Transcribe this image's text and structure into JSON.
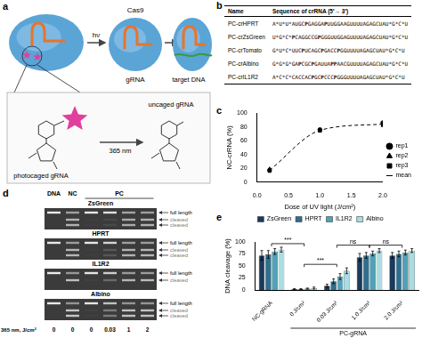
{
  "panel_labels": [
    "a",
    "b",
    "c",
    "d",
    "e"
  ],
  "diagram": {
    "texts": {
      "light": "hν",
      "protein": "Cas9",
      "guide": "gRNA",
      "target": "target DNA",
      "caged": "photocaged gRNA",
      "uncaged": "uncaged gRNA",
      "wavelength": "365 nm"
    }
  },
  "table": {
    "header": [
      "Name",
      "Sequence of crRNA (5′→ 3′)"
    ],
    "rows": [
      [
        "PC-crHPRT",
        "A*U*U*AUGCPGAGGAPUUGGAAGUUUUAGAGCUAU*G*C*U"
      ],
      [
        "PC-crZsGreen",
        "U*G*C*PCAGGCCGPGGGUUGGAGUUUUAGAGCUAU*G*C*U"
      ],
      [
        "PC-crTomato",
        "G*U*C*UUCPUCAGCPGACCPGGUUUUAGAGCUAU*G*C*U"
      ],
      [
        "PC-crAlbino",
        "G*G*G*GAPCGCPGAUUAPPAACGUUUUAGAGCUAU*G*C*U"
      ],
      [
        "PC-crIL1R2",
        "A*C*C*CACCACPGCPCCCPGGGUUUUAGAGCUAU*G*C*U"
      ]
    ]
  },
  "gels": {
    "lane_headers": [
      "DNA",
      "NC",
      "PC",
      "PC",
      "PC",
      "PC"
    ],
    "dose_label": "365 nm, J/cm²",
    "doses": [
      0,
      0,
      0,
      0.03,
      1,
      2
    ],
    "items": [
      {
        "name": "ZsGreen",
        "bands": [
          "full length",
          "cleaved",
          "cleaved"
        ]
      },
      {
        "name": "HPRT",
        "bands": [
          "full length",
          "cleaved",
          "cleaved"
        ]
      },
      {
        "name": "IL1R2",
        "bands": [
          "full length",
          "cleaved"
        ]
      },
      {
        "name": "Albino",
        "bands": [
          "full length",
          "cleaved",
          "cleaved"
        ]
      }
    ]
  },
  "chart_data": [
    {
      "type": "scatter",
      "x_label": "Dose of UV light (J/cm²)",
      "y_label": "NC-crRNA (%)",
      "xlim": [
        0,
        2
      ],
      "xticks": [
        {
          "value": 0,
          "label": "0.0"
        },
        0.5,
        {
          "value": 1,
          "label": "1.0"
        },
        1.5,
        {
          "value": 2,
          "label": "2.0"
        }
      ],
      "ylim": [
        0,
        100
      ],
      "yticks": [
        0,
        20,
        40,
        60,
        80,
        100
      ],
      "grid": false,
      "legend": "right",
      "series": [
        {
          "name": "rep1",
          "type": "scatter",
          "marker": "circle",
          "color": "#000000",
          "x": [
            0.2,
            1.0,
            2.0
          ],
          "values": [
            17,
            76,
            86
          ]
        },
        {
          "name": "rep2",
          "type": "scatter",
          "marker": "triangle",
          "color": "#000000",
          "x": [
            0.2,
            1.0,
            2.0
          ],
          "values": [
            19,
            74,
            82
          ]
        },
        {
          "name": "rep3",
          "type": "scatter",
          "marker": "square",
          "color": "#000000",
          "x": [
            0.2,
            1.0,
            2.0
          ],
          "values": [
            16,
            75,
            84
          ]
        },
        {
          "name": "mean",
          "type": "line",
          "line_style": "dashed",
          "color": "#000000",
          "x": [
            0.2,
            1.0,
            2.0
          ],
          "values": [
            17,
            75,
            84
          ]
        }
      ]
    },
    {
      "type": "bar",
      "y_label": "DNA cleavage (%)",
      "categories": [
        "NC-gRNA",
        "0 J/cm²",
        "0.03 J/cm²",
        "1.0 J/cm²",
        "2.0 J/cm²"
      ],
      "category_groups": [
        null,
        "PC-gRNA",
        "PC-gRNA",
        "PC-gRNA",
        "PC-gRNA"
      ],
      "ylim": [
        0,
        100
      ],
      "yticks": [
        0,
        25,
        50,
        75,
        100
      ],
      "grid": false,
      "legend": "top",
      "series": [
        {
          "name": "ZsGreen",
          "color": "#1b3a5c",
          "values": [
            72,
            2,
            9,
            68,
            72
          ],
          "errors": [
            10,
            1,
            3,
            8,
            6
          ]
        },
        {
          "name": "HPRT",
          "color": "#2e6f8e",
          "values": [
            74,
            2,
            18,
            72,
            75
          ],
          "errors": [
            8,
            1,
            5,
            6,
            6
          ]
        },
        {
          "name": "IL1R2",
          "color": "#4fa3b8",
          "values": [
            80,
            3,
            28,
            76,
            78
          ],
          "errors": [
            6,
            1,
            6,
            5,
            5
          ]
        },
        {
          "name": "Albino",
          "color": "#a9dde3",
          "values": [
            84,
            4,
            40,
            82,
            82
          ],
          "errors": [
            5,
            2,
            6,
            4,
            4
          ]
        }
      ],
      "annotations": [
        {
          "text": "***",
          "between": [
            "NC-gRNA",
            "0 J/cm²"
          ]
        },
        {
          "text": "***",
          "between": [
            "0 J/cm²",
            "0.03 J/cm²"
          ]
        },
        {
          "text": "ns",
          "between": [
            "0.03 J/cm²",
            "1.0 J/cm²"
          ]
        },
        {
          "text": "ns",
          "between": [
            "1.0 J/cm²",
            "2.0 J/cm²"
          ]
        }
      ]
    }
  ]
}
